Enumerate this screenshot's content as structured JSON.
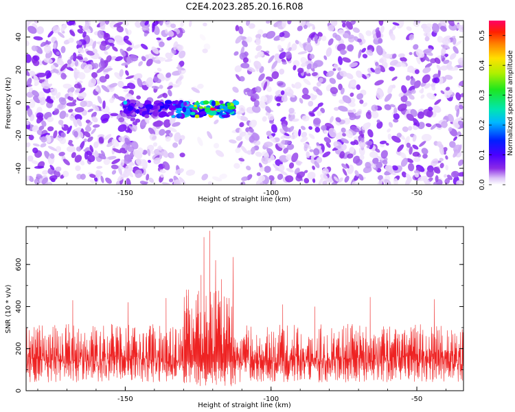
{
  "title": "C2E4.2023.285.20.16.R08",
  "colors": {
    "line": "#ee2222",
    "axis": "#000000",
    "colormap": [
      "#ffffff",
      "#e6d2fa",
      "#b07cf0",
      "#8b2be6",
      "#6a00ff",
      "#0000ff",
      "#0077ff",
      "#00d0ff",
      "#00e6a0",
      "#1ee61e",
      "#a0f000",
      "#ffe000",
      "#ff8000",
      "#ff2000",
      "#ff0060"
    ]
  },
  "chart_data": [
    {
      "type": "heatmap",
      "xlabel": "Height of straight line (km)",
      "ylabel": "Frequency (Hz)",
      "xlim": [
        -184,
        -34
      ],
      "ylim": [
        -50,
        50
      ],
      "xticks": [
        -150,
        -100,
        -50
      ],
      "yticks": [
        -40,
        -20,
        0,
        20,
        40
      ],
      "colorbar": {
        "label": "Normalized spectral amplitude",
        "range": [
          0,
          0.55
        ],
        "ticks": [
          0.0,
          0.1,
          0.2,
          0.3,
          0.4,
          0.5
        ]
      },
      "signal": {
        "x_range": [
          -152,
          -112
        ],
        "frequency_center": -4,
        "peak_x": -120,
        "peak_amplitude": 0.55
      },
      "quiet_region": {
        "x_range": [
          -130,
          -112
        ]
      }
    },
    {
      "type": "line",
      "xlabel": "Height of straight line (km)",
      "ylabel": "SNR (10 * v/v)",
      "xlim": [
        -184,
        -34
      ],
      "ylim": [
        0,
        780
      ],
      "xticks": [
        -150,
        -100,
        -50
      ],
      "yticks": [
        0,
        200,
        400,
        600
      ],
      "series": [
        {
          "baseline": 155,
          "noise_floor": 40,
          "typical_max": 300,
          "peaks": [
            {
              "x": -121,
              "value": 760
            },
            {
              "x": -123,
              "value": 730
            },
            {
              "x": -113,
              "value": 635
            },
            {
              "x": -119,
              "value": 620
            },
            {
              "x": -124,
              "value": 550
            },
            {
              "x": -117,
              "value": 530
            },
            {
              "x": -129,
              "value": 480
            },
            {
              "x": -149,
              "value": 420
            },
            {
              "x": -136,
              "value": 440
            },
            {
              "x": -168,
              "value": 430
            },
            {
              "x": -66,
              "value": 445
            },
            {
              "x": -44,
              "value": 435
            },
            {
              "x": -96,
              "value": 410
            },
            {
              "x": -85,
              "value": 400
            }
          ]
        }
      ]
    }
  ]
}
